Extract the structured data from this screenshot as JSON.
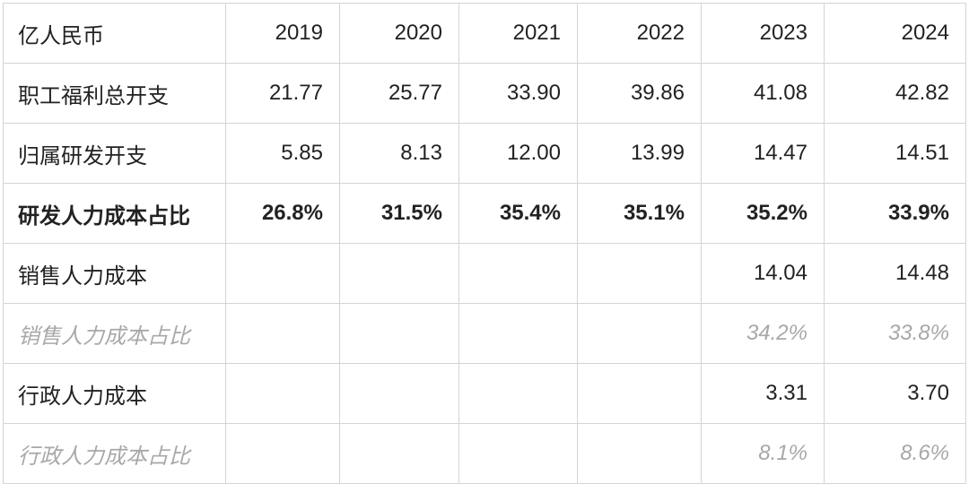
{
  "table": {
    "header": [
      "亿人民币",
      "2019",
      "2020",
      "2021",
      "2022",
      "2023",
      "2024"
    ],
    "rows": [
      [
        "职工福利总开支",
        "21.77",
        "25.77",
        "33.90",
        "39.86",
        "41.08",
        "42.82"
      ],
      [
        "归属研发开支",
        "5.85",
        "8.13",
        "12.00",
        "13.99",
        "14.47",
        "14.51"
      ],
      [
        "研发人力成本占比",
        "26.8%",
        "31.5%",
        "35.4%",
        "35.1%",
        "35.2%",
        "33.9%"
      ],
      [
        "销售人力成本",
        null,
        null,
        null,
        null,
        "14.04",
        "14.48"
      ],
      [
        "销售人力成本占比",
        null,
        null,
        null,
        null,
        "34.2%",
        "33.8%"
      ],
      [
        "行政人力成本",
        null,
        null,
        null,
        null,
        "3.31",
        "3.70"
      ],
      [
        "行政人力成本占比",
        null,
        null,
        null,
        null,
        "8.1%",
        "8.6%"
      ]
    ]
  }
}
